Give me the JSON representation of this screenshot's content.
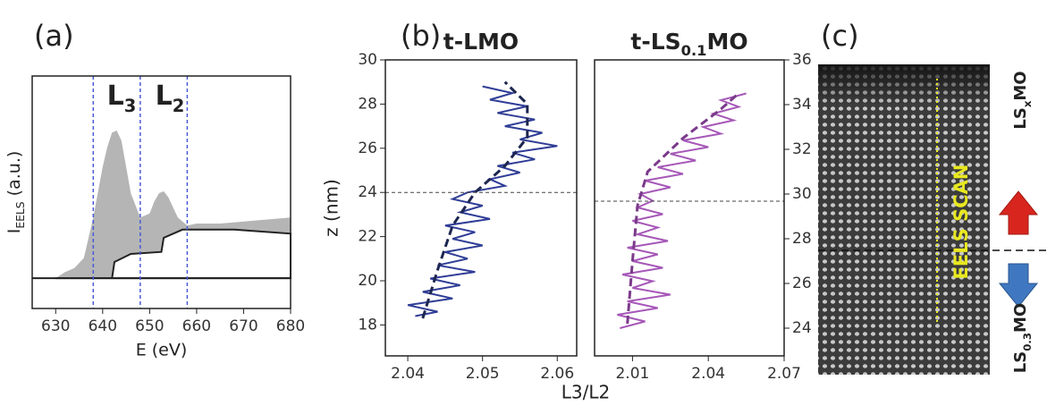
{
  "chart_data": [
    {
      "type": "area",
      "panel_label": "(a)",
      "x_label": "E (eV)",
      "y_label": [
        "I",
        "EELS",
        " (a.u.)"
      ],
      "xlim": [
        625,
        680
      ],
      "xticks": [
        630,
        640,
        650,
        660,
        670,
        680
      ],
      "ylim": [
        -0.15,
        1
      ],
      "vlines": [
        638,
        648,
        658
      ],
      "vline_color": "#4a5ad8",
      "peak_labels": [
        [
          "L",
          "3"
        ],
        [
          "L",
          "2"
        ]
      ],
      "series": [
        {
          "color": "#b5b5b5",
          "x": [
            630,
            632,
            634,
            636,
            638,
            640,
            641,
            642,
            643,
            644,
            645,
            646,
            648,
            650,
            651,
            652,
            653,
            654,
            655,
            656,
            658,
            660,
            665,
            670,
            675,
            680,
            680
          ],
          "values": [
            0,
            0.03,
            0.05,
            0.1,
            0.3,
            0.55,
            0.65,
            0.72,
            0.73,
            0.68,
            0.55,
            0.42,
            0.3,
            0.32,
            0.38,
            0.42,
            0.43,
            0.4,
            0.35,
            0.3,
            0.26,
            0.27,
            0.27,
            0.28,
            0.29,
            0.3,
            0
          ]
        },
        {
          "color": "#222222",
          "x": [
            630,
            642,
            642.5,
            646,
            652.5,
            653,
            657,
            668,
            680,
            680
          ],
          "values": [
            0,
            0,
            0.08,
            0.12,
            0.13,
            0.2,
            0.24,
            0.24,
            0.22,
            0
          ]
        }
      ]
    },
    {
      "type": "line",
      "panel_label": "(b)",
      "title": "t-LMO",
      "x_label": "L3/L2",
      "y_label": "z (nm)",
      "xlim": [
        2.037,
        2.0626
      ],
      "xticks": [
        2.04,
        2.05,
        2.06
      ],
      "ylim": [
        16.6,
        30
      ],
      "yticks": [
        18,
        20,
        22,
        24,
        26,
        28,
        30
      ],
      "y_axis": "left",
      "hline": 24,
      "series": [
        {
          "color": "#2f3d96",
          "dashed": false,
          "x": [
            2.041,
            2.044,
            2.04,
            2.046,
            2.042,
            2.047,
            2.043,
            2.049,
            2.044,
            2.048,
            2.045,
            2.05,
            2.046,
            2.049,
            2.045,
            2.051,
            2.047,
            2.05,
            2.046,
            2.048,
            2.053,
            2.051,
            2.055,
            2.052,
            2.057,
            2.054,
            2.06,
            2.055,
            2.058,
            2.053,
            2.057,
            2.052,
            2.056,
            2.051,
            2.054,
            2.05
          ],
          "values": [
            18.4,
            18.6,
            18.9,
            19.2,
            19.5,
            19.8,
            20.1,
            20.4,
            20.7,
            21.0,
            21.3,
            21.6,
            21.9,
            22.2,
            22.5,
            22.8,
            23.1,
            23.4,
            23.7,
            24.0,
            24.3,
            24.6,
            24.9,
            25.2,
            25.5,
            25.8,
            26.1,
            26.4,
            26.7,
            27.0,
            27.3,
            27.6,
            27.9,
            28.2,
            28.5,
            28.8
          ]
        },
        {
          "color": "#1d2650",
          "dashed": true,
          "x": [
            2.042,
            2.044,
            2.046,
            2.049,
            2.053,
            2.056,
            2.056,
            2.053
          ],
          "values": [
            18.3,
            20.5,
            22.5,
            24.0,
            25.2,
            26.5,
            28.0,
            29.0
          ]
        }
      ]
    },
    {
      "type": "line",
      "title": [
        "t-LS",
        "0.1",
        "MO"
      ],
      "xlim": [
        1.995,
        2.07
      ],
      "xticks": [
        2.01,
        2.04,
        2.07
      ],
      "ylim": [
        22.76,
        36
      ],
      "yticks": [
        24,
        26,
        28,
        30,
        32,
        34,
        36
      ],
      "y_axis": "right",
      "hline": 29.68,
      "series": [
        {
          "color": "#a658b8",
          "dashed": false,
          "x": [
            2.005,
            2.015,
            2.004,
            2.02,
            2.008,
            2.025,
            2.01,
            2.018,
            2.006,
            2.022,
            2.01,
            2.02,
            2.008,
            2.024,
            2.012,
            2.02,
            2.01,
            2.022,
            2.012,
            2.018,
            2.013,
            2.025,
            2.015,
            2.03,
            2.02,
            2.035,
            2.025,
            2.04,
            2.03,
            2.045,
            2.038,
            2.05,
            2.042,
            2.052,
            2.045,
            2.055
          ],
          "values": [
            24.0,
            24.3,
            24.6,
            24.9,
            25.2,
            25.5,
            25.8,
            26.1,
            26.4,
            26.7,
            27.0,
            27.3,
            27.6,
            27.9,
            28.2,
            28.5,
            28.8,
            29.1,
            29.4,
            29.7,
            30.0,
            30.3,
            30.6,
            30.9,
            31.2,
            31.5,
            31.8,
            32.1,
            32.4,
            32.7,
            33.0,
            33.3,
            33.6,
            33.9,
            34.2,
            34.5
          ]
        },
        {
          "color": "#7a3a8a",
          "dashed": true,
          "x": [
            2.008,
            2.01,
            2.012,
            2.016,
            2.03,
            2.045,
            2.052
          ],
          "values": [
            24.2,
            27.0,
            29.5,
            31.0,
            32.5,
            33.8,
            34.5
          ]
        }
      ]
    }
  ],
  "image_panel": {
    "panel_label": "(c)",
    "scan_label": "EELS SCAN",
    "top_label": [
      "LS",
      "x",
      "MO"
    ],
    "bottom_label": [
      "LS",
      "0.3",
      "MO"
    ]
  }
}
